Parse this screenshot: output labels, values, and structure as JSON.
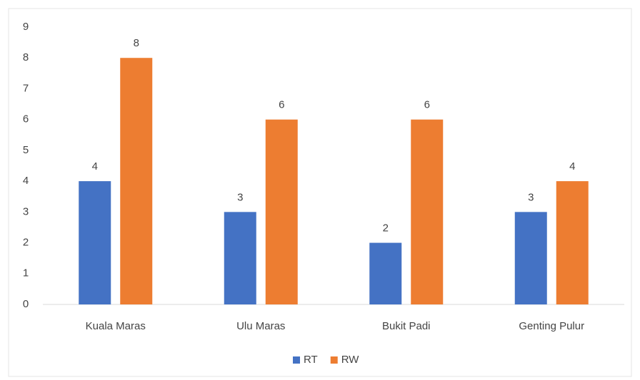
{
  "chart_data": {
    "type": "bar",
    "categories": [
      "Kuala Maras",
      "Ulu Maras",
      "Bukit Padi",
      "Genting Pulur"
    ],
    "series": [
      {
        "name": "RT",
        "color": "#4472c4",
        "values": [
          4,
          3,
          2,
          3
        ]
      },
      {
        "name": "RW",
        "color": "#ed7d31",
        "values": [
          8,
          6,
          6,
          4
        ]
      }
    ],
    "ylim": [
      0,
      9
    ],
    "yticks": [
      0,
      1,
      2,
      3,
      4,
      5,
      6,
      7,
      8,
      9
    ],
    "legend": "bottom"
  }
}
